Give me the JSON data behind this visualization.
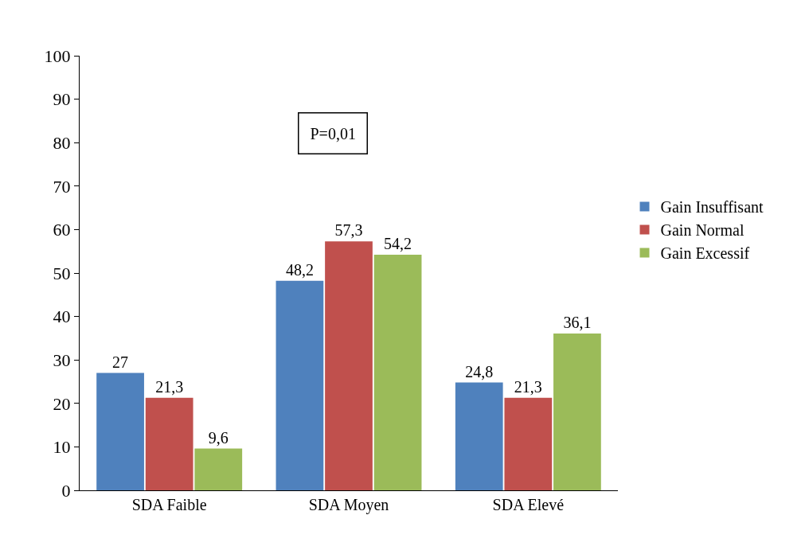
{
  "chart_data": {
    "type": "bar",
    "categories": [
      "SDA Faible",
      "SDA Moyen",
      "SDA Elevé"
    ],
    "series": [
      {
        "name": "Gain Insuffisant",
        "color": "#4f81bd",
        "values": [
          27,
          48.2,
          24.8
        ],
        "value_labels": [
          "27",
          "48,2",
          "24,8"
        ]
      },
      {
        "name": "Gain Normal",
        "color": "#c0504d",
        "values": [
          21.3,
          57.3,
          21.3
        ],
        "value_labels": [
          "21,3",
          "57,3",
          "21,3"
        ]
      },
      {
        "name": "Gain Excessif",
        "color": "#9bbb59",
        "values": [
          9.6,
          54.2,
          36.1
        ],
        "value_labels": [
          "9,6",
          "54,2",
          "36,1"
        ]
      }
    ],
    "ylim": [
      0,
      100
    ],
    "yticks": [
      0,
      10,
      20,
      30,
      40,
      50,
      60,
      70,
      80,
      90,
      100
    ],
    "legend": "right",
    "annotations": [
      "P=0,01"
    ]
  }
}
